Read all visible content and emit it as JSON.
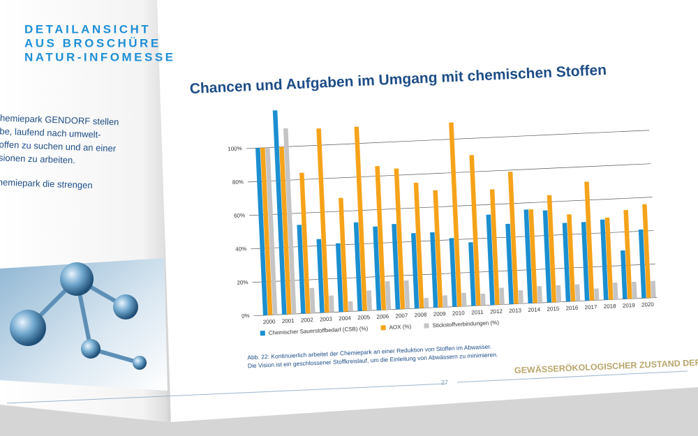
{
  "header": {
    "lines": [
      "DETAILANSICHT",
      "AUS BROSCHÜRE",
      "NATUR-INFOMESSE"
    ]
  },
  "left_page": {
    "lines": [
      "hemiepark GENDORF stellen",
      "be, laufend nach umwelt-",
      "offen zu suchen und an einer",
      "sionen zu arbeiten.",
      "hemiepark die strengen"
    ]
  },
  "chart_data": {
    "type": "bar",
    "title": "Chancen und Aufgaben im Umgang mit chemischen Stoffen",
    "categories": [
      "2000",
      "2001",
      "2002",
      "2003",
      "2004",
      "2005",
      "2006",
      "2007",
      "2008",
      "2009",
      "2010",
      "2011",
      "2012",
      "2013",
      "2014",
      "2015",
      "2016",
      "2017",
      "2018",
      "2019",
      "2020"
    ],
    "series": [
      {
        "name": "Chemischer Sauerstoffbedarf (CSB) (%)",
        "color": "#1b8fd0",
        "values": [
          100,
          122,
          53,
          44,
          41,
          53,
          50,
          51,
          45,
          45,
          41,
          38,
          54,
          48,
          56,
          55,
          47,
          47,
          48,
          29,
          41
        ]
      },
      {
        "name": "AOX (%)",
        "color": "#f5a31a",
        "values": [
          100,
          100,
          84,
          110,
          68,
          110,
          86,
          84,
          75,
          70,
          110,
          90,
          69,
          79,
          56,
          64,
          52,
          71,
          49,
          53,
          56
        ]
      },
      {
        "name": "Stickstoffverbindungen (%)",
        "color": "#c4c4c4",
        "values": [
          100,
          111,
          15,
          10,
          6,
          12,
          17,
          17,
          6,
          7,
          8,
          7,
          10,
          8,
          10,
          10,
          10,
          7,
          10,
          10,
          10
        ]
      }
    ],
    "ylim": [
      0,
      120
    ],
    "yticks": [
      {
        "value": 0,
        "label": "0%"
      },
      {
        "value": 20,
        "label": "20%"
      },
      {
        "value": 40,
        "label": "40%"
      },
      {
        "value": 60,
        "label": "60%"
      },
      {
        "value": 80,
        "label": "80%"
      },
      {
        "value": 100,
        "label": "100%"
      }
    ],
    "grid": true,
    "caption": [
      "Abb. 22: Kontinuierlich arbeitet der Chemiepark an einer Reduktion von Stoffen im Abwasser.",
      "Die Vision ist ein geschlossener Stoffkreislauf, um die Einleitung von Abwässern zu minimieren."
    ]
  },
  "footer": {
    "section": "GEWÄSSERÖKOLOGISCHER ZUSTAND DER ALZ",
    "page": "27"
  }
}
